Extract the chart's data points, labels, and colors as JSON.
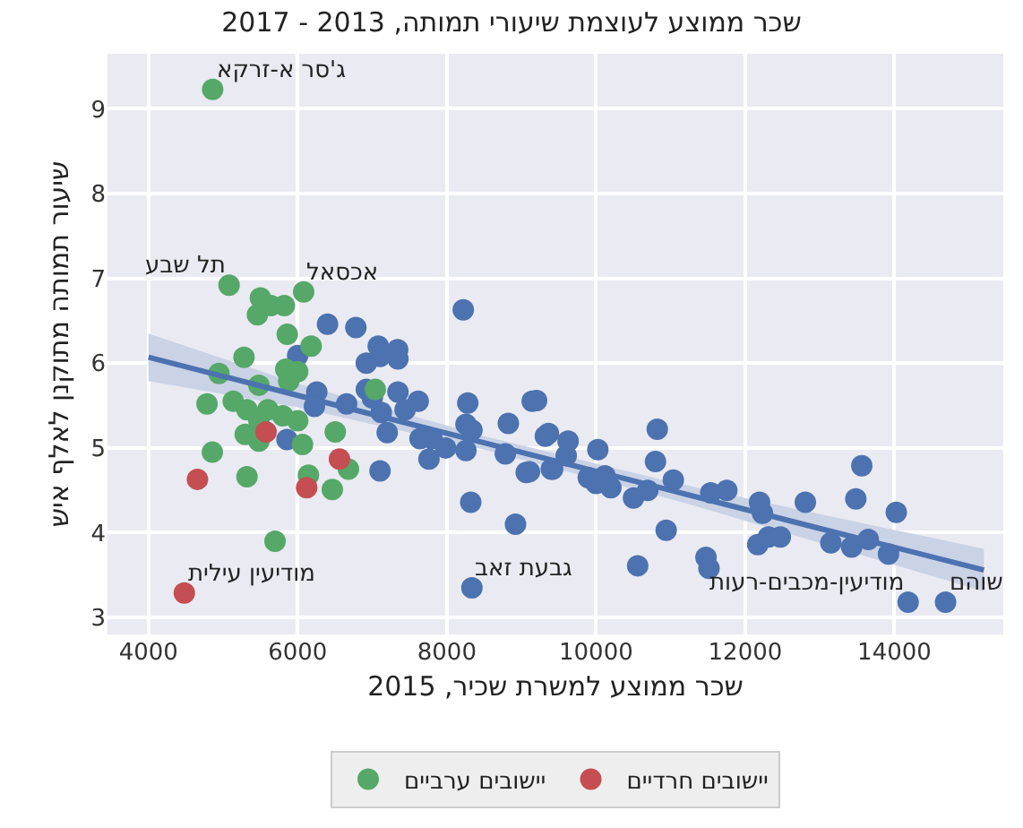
{
  "chart_data": {
    "type": "scatter",
    "title": "שכר ממוצע לעוצמת שיעורי תמותה, 2013 - 2017",
    "xlabel": "שכר ממוצע למשרת שכיר, 2015",
    "ylabel": "שיעור תמותה מתוקנן לאלף איש",
    "xlim": [
      3450,
      15460
    ],
    "xticks": [
      4000,
      6000,
      8000,
      10000,
      12000,
      14000
    ],
    "ylim": [
      2.8,
      9.65
    ],
    "yticks": [
      3,
      4,
      5,
      6,
      7,
      8,
      9
    ],
    "grid": true,
    "legend": "bottom",
    "marker": "circle",
    "series": [
      {
        "color": "#4c72b0",
        "x": [
          6400,
          6780,
          8220,
          7080,
          7340,
          6000,
          6256,
          6224,
          5856,
          6656,
          6920,
          7104,
          7344,
          6920,
          7000,
          7120,
          7200,
          7344,
          7616,
          7440,
          7640,
          7800,
          7984,
          7760,
          7104,
          8280,
          8256,
          8336,
          8256,
          8320,
          8824,
          8784,
          9064,
          8920,
          9144,
          9320,
          9400,
          8336,
          9203,
          9362,
          9625,
          9600,
          9418,
          9107,
          10024,
          9896,
          10000,
          10120,
          10199,
          10502,
          10693,
          10821,
          10797,
          11036,
          10940,
          10558,
          11474,
          11514,
          11538,
          11753,
          12192,
          12232,
          12168,
          12311,
          12471,
          12806,
          13148,
          13427,
          13650,
          13483,
          13563,
          13921,
          14025,
          14184,
          14686
        ],
        "values": [
          6.46,
          6.42,
          6.63,
          6.2,
          6.16,
          6.09,
          5.66,
          5.49,
          5.1,
          5.52,
          6.0,
          6.08,
          6.05,
          5.69,
          5.59,
          5.42,
          5.18,
          5.66,
          5.55,
          5.45,
          5.11,
          5.11,
          5.0,
          4.87,
          4.73,
          5.53,
          5.28,
          5.21,
          4.97,
          4.36,
          5.29,
          4.93,
          4.71,
          4.1,
          5.55,
          5.14,
          4.75,
          3.35,
          5.56,
          5.17,
          5.08,
          4.91,
          4.75,
          4.72,
          4.98,
          4.65,
          4.58,
          4.67,
          4.53,
          4.41,
          4.5,
          5.22,
          4.84,
          4.62,
          4.03,
          3.61,
          3.71,
          3.58,
          4.47,
          4.5,
          4.36,
          4.23,
          3.86,
          3.95,
          3.95,
          4.36,
          3.88,
          3.83,
          3.92,
          4.4,
          4.79,
          3.75,
          4.24,
          3.18,
          3.18
        ]
      },
      {
        "name": "יישובים ערביים",
        "color": "#55a868",
        "x": [
          4860,
          5080,
          5500,
          5460,
          5640,
          5820,
          6080,
          5860,
          6180,
          5280,
          4944,
          5840,
          6000,
          5880,
          5480,
          4784,
          5136,
          5320,
          5600,
          5800,
          6000,
          5480,
          5296,
          5480,
          6064,
          6504,
          4856,
          5320,
          6144,
          6464,
          6680,
          5696,
          7040
        ],
        "values": [
          9.23,
          6.92,
          6.77,
          6.57,
          6.68,
          6.68,
          6.84,
          6.34,
          6.2,
          6.07,
          5.88,
          5.93,
          5.9,
          5.79,
          5.74,
          5.52,
          5.55,
          5.45,
          5.45,
          5.38,
          5.32,
          5.32,
          5.16,
          5.08,
          5.04,
          5.19,
          4.95,
          4.66,
          4.68,
          4.51,
          4.75,
          3.9,
          5.69
        ]
      },
      {
        "name": "יישובים חרדיים",
        "color": "#c44e52",
        "x": [
          4656,
          5576,
          6120,
          6560,
          4480
        ],
        "values": [
          4.63,
          5.19,
          4.53,
          4.87,
          3.29
        ]
      },
      {
        "type": "line",
        "marker": "none",
        "color": "#4c72b0",
        "x": [
          4000,
          6000,
          8500,
          11000,
          13000,
          15200
        ],
        "values": [
          6.07,
          5.62,
          5.06,
          4.5,
          4.05,
          3.56
        ],
        "lower": [
          5.79,
          5.48,
          4.98,
          4.4,
          3.88,
          3.31
        ],
        "upper": [
          6.35,
          5.76,
          5.14,
          4.6,
          4.22,
          3.81
        ]
      }
    ],
    "annotations": [
      {
        "text": "ג'סר א-זרקא",
        "x": 4860,
        "y": 9.23
      },
      {
        "text": "תל שבע",
        "x": 5080,
        "y": 6.92
      },
      {
        "text": "אכסאל",
        "x": 6080,
        "y": 6.84
      },
      {
        "text": "מודיעין עילית",
        "x": 4480,
        "y": 3.29
      },
      {
        "text": "גבעת זאב",
        "x": 8336,
        "y": 3.35
      },
      {
        "text": "מודיעין-מכבים-רעות",
        "x": 14184,
        "y": 3.18
      },
      {
        "text": "שוהם",
        "x": 14686,
        "y": 3.18
      }
    ]
  }
}
